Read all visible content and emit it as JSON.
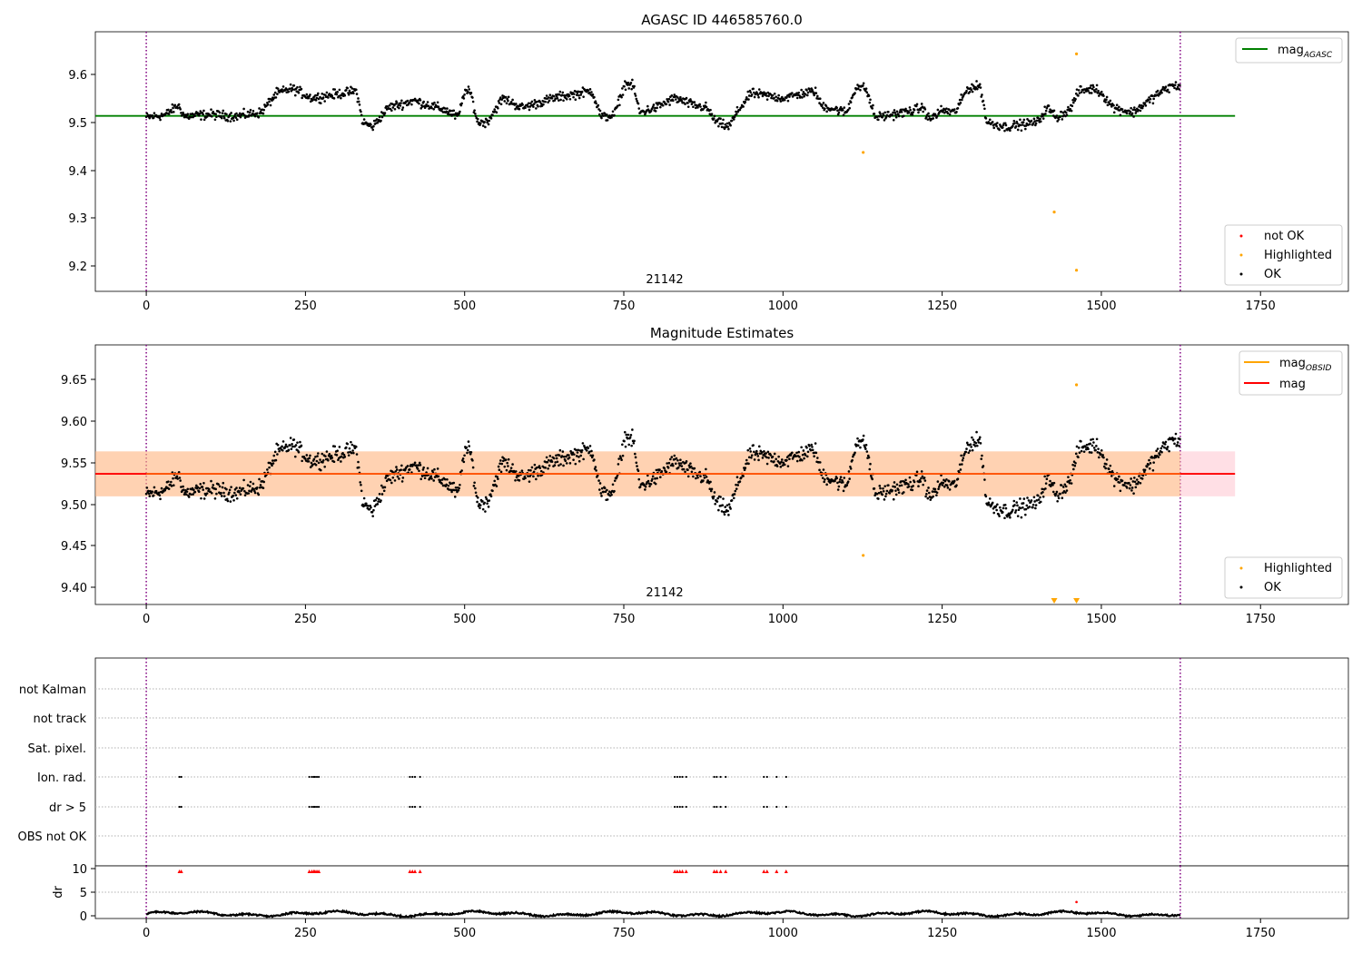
{
  "chart_data": [
    {
      "type": "scatter",
      "title": "AGASC ID 446585760.0",
      "annotation": "21142",
      "xlim": [
        -80,
        1888
      ],
      "ylim": [
        9.148,
        9.688
      ],
      "xticks": [
        0,
        250,
        500,
        750,
        1000,
        1250,
        1500,
        1750
      ],
      "yticks": [
        9.2,
        9.3,
        9.4,
        9.5,
        9.6
      ],
      "ytick_labels": [
        "9.2",
        "9.3",
        "9.4",
        "9.5",
        "9.6"
      ],
      "vlines": [
        0,
        1624
      ],
      "hline": {
        "y": 9.513,
        "x_range": [
          -80,
          1710
        ],
        "color": "#008000"
      },
      "series": [
        {
          "name": "OK",
          "color": "#000000",
          "profile": [
            [
              0,
              9.51
            ],
            [
              30,
              9.515
            ],
            [
              50,
              9.535
            ],
            [
              60,
              9.512
            ],
            [
              100,
              9.516
            ],
            [
              140,
              9.512
            ],
            [
              180,
              9.52
            ],
            [
              205,
              9.56
            ],
            [
              230,
              9.57
            ],
            [
              260,
              9.55
            ],
            [
              330,
              9.565
            ],
            [
              340,
              9.5
            ],
            [
              355,
              9.49
            ],
            [
              380,
              9.53
            ],
            [
              420,
              9.545
            ],
            [
              470,
              9.525
            ],
            [
              490,
              9.51
            ],
            [
              500,
              9.565
            ],
            [
              510,
              9.56
            ],
            [
              520,
              9.5
            ],
            [
              535,
              9.5
            ],
            [
              560,
              9.55
            ],
            [
              590,
              9.53
            ],
            [
              640,
              9.55
            ],
            [
              700,
              9.565
            ],
            [
              715,
              9.51
            ],
            [
              735,
              9.515
            ],
            [
              752,
              9.58
            ],
            [
              765,
              9.575
            ],
            [
              775,
              9.52
            ],
            [
              800,
              9.53
            ],
            [
              830,
              9.55
            ],
            [
              860,
              9.535
            ],
            [
              880,
              9.53
            ],
            [
              895,
              9.5
            ],
            [
              915,
              9.49
            ],
            [
              930,
              9.525
            ],
            [
              950,
              9.56
            ],
            [
              1000,
              9.55
            ],
            [
              1050,
              9.565
            ],
            [
              1060,
              9.535
            ],
            [
              1100,
              9.52
            ],
            [
              1115,
              9.575
            ],
            [
              1130,
              9.57
            ],
            [
              1145,
              9.51
            ],
            [
              1190,
              9.52
            ],
            [
              1220,
              9.53
            ],
            [
              1230,
              9.505
            ],
            [
              1250,
              9.525
            ],
            [
              1270,
              9.52
            ],
            [
              1290,
              9.57
            ],
            [
              1310,
              9.575
            ],
            [
              1320,
              9.5
            ],
            [
              1350,
              9.49
            ],
            [
              1400,
              9.5
            ],
            [
              1415,
              9.53
            ],
            [
              1430,
              9.51
            ],
            [
              1450,
              9.525
            ],
            [
              1465,
              9.565
            ],
            [
              1490,
              9.57
            ],
            [
              1500,
              9.56
            ],
            [
              1520,
              9.53
            ],
            [
              1550,
              9.52
            ],
            [
              1570,
              9.54
            ],
            [
              1590,
              9.56
            ],
            [
              1610,
              9.575
            ],
            [
              1624,
              9.575
            ]
          ]
        },
        {
          "name": "Highlighted",
          "color": "#ffa500",
          "points": [
            [
              1126,
              9.437
            ],
            [
              1461,
              9.642
            ],
            [
              1426,
              9.313
            ],
            [
              1461,
              9.192
            ]
          ]
        },
        {
          "name": "not OK",
          "color": "#ff0000",
          "points": []
        }
      ],
      "legends": [
        {
          "position": "top-right",
          "entries": [
            {
              "label": "mag",
              "sub": "AGASC",
              "color": "#008000",
              "kind": "line"
            }
          ]
        },
        {
          "position": "bottom-right",
          "entries": [
            {
              "label": "not OK",
              "color": "#ff0000",
              "kind": "dot"
            },
            {
              "label": "Highlighted",
              "color": "#ffa500",
              "kind": "dot"
            },
            {
              "label": "OK",
              "color": "#000000",
              "kind": "dot"
            }
          ]
        }
      ]
    },
    {
      "type": "scatter",
      "title": "Magnitude Estimates",
      "annotation": "21142",
      "xlim": [
        -80,
        1888
      ],
      "ylim": [
        9.378,
        9.69
      ],
      "xticks": [
        0,
        250,
        500,
        750,
        1000,
        1250,
        1500,
        1750
      ],
      "yticks": [
        9.4,
        9.45,
        9.5,
        9.55,
        9.6,
        9.65
      ],
      "ytick_labels": [
        "9.40",
        "9.45",
        "9.50",
        "9.55",
        "9.60",
        "9.65"
      ],
      "vlines": [
        0,
        1624
      ],
      "band_pink": {
        "y_range": [
          9.508,
          9.562
        ],
        "x_range": [
          -80,
          1710
        ],
        "color": "#ffc0cb"
      },
      "band_orange": {
        "y_range": [
          9.508,
          9.562
        ],
        "x_range": [
          -80,
          1624
        ],
        "color": "#ffa500"
      },
      "hline": {
        "y": 9.535,
        "x_range": [
          -80,
          1710
        ],
        "color": "#ff0000"
      },
      "series": [
        {
          "name": "OK",
          "color": "#000000"
        },
        {
          "name": "Highlighted",
          "color": "#ffa500",
          "points": [
            [
              1126,
              9.437
            ],
            [
              1461,
              9.642
            ]
          ],
          "clipped_x": [
            1426,
            1461
          ]
        }
      ],
      "legends": [
        {
          "position": "top-right",
          "entries": [
            {
              "label": "mag",
              "sub": "OBSID",
              "color": "#ffa500",
              "kind": "line"
            },
            {
              "label": "mag",
              "color": "#ff0000",
              "kind": "line"
            }
          ]
        },
        {
          "position": "bottom-right",
          "entries": [
            {
              "label": "Highlighted",
              "color": "#ffa500",
              "kind": "dot"
            },
            {
              "label": "OK",
              "color": "#000000",
              "kind": "dot"
            }
          ]
        }
      ]
    },
    {
      "type": "scatter",
      "xlim": [
        -80,
        1888
      ],
      "categories": [
        "not Kalman",
        "not track",
        "Sat. pixel.",
        "Ion. rad.",
        "dr > 5",
        "OBS not OK"
      ],
      "flag_x": [
        52,
        55,
        256,
        260,
        263,
        265,
        268,
        271,
        414,
        418,
        422,
        430,
        830,
        834,
        838,
        842,
        848,
        892,
        896,
        902,
        910,
        970,
        975,
        990,
        1005
      ]
    },
    {
      "type": "line",
      "xlim": [
        -80,
        1888
      ],
      "ylim": [
        -0.3,
        11.2
      ],
      "yticks": [
        0,
        5,
        10
      ],
      "ytick_labels": [
        "0",
        "5",
        "10"
      ],
      "ylabel": "dr",
      "xticks": [
        0,
        250,
        500,
        750,
        1000,
        1250,
        1500,
        1750
      ],
      "xtick_labels": [
        "0",
        "250",
        "500",
        "750",
        "1000",
        "1250",
        "1500",
        "1750"
      ],
      "vlines": [
        0,
        1624
      ],
      "clip_value": 10,
      "outlier": {
        "x": 1461,
        "y": 3.3
      }
    }
  ]
}
